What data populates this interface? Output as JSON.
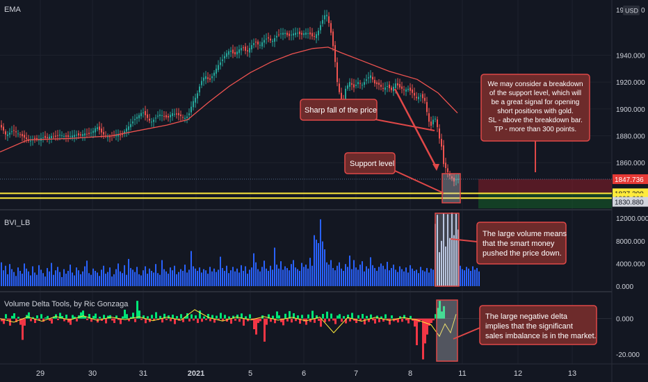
{
  "chart_data": {
    "type": "candlestick",
    "instrument_currency": "USD",
    "price_axis_top_label": "19",
    "price_axis_top_suffix": "0",
    "x_axis": {
      "ticks": [
        "29",
        "30",
        "31",
        "2021",
        "5",
        "6",
        "7",
        "8",
        "11",
        "12",
        "13"
      ]
    },
    "price_pane": {
      "indicator_label": "EMA",
      "ylim": [
        1826,
        1978
      ],
      "y_ticks": [
        "1940.000",
        "1920.000",
        "1900.000",
        "1880.000",
        "1860.000"
      ],
      "y_tick_values": [
        1940,
        1920,
        1900,
        1880,
        1860
      ],
      "price_tags": [
        {
          "text": "1847.736",
          "value": 1847.736,
          "bg": "#e53935",
          "fg": "#ffffff"
        },
        {
          "text": "1837.200",
          "value": 1837.2,
          "bg": "#ffeb3b",
          "fg": "#131722"
        },
        {
          "text": "1833.600",
          "value": 1833.6,
          "bg": "#ffeb3b",
          "fg": "#131722"
        },
        {
          "text": "1830.880",
          "value": 1830.88,
          "bg": "#d1d4dc",
          "fg": "#131722"
        }
      ],
      "support_lines": [
        1837.2,
        1833.6
      ],
      "current_price": 1847.736,
      "target_zone": [
        1830.88,
        1837.2
      ],
      "risk_zone": [
        1837.2,
        1847.736
      ],
      "close_path": [
        [
          0,
          1887
        ],
        [
          4,
          1884
        ],
        [
          8,
          1880
        ],
        [
          12,
          1882
        ],
        [
          18,
          1884
        ],
        [
          24,
          1882
        ],
        [
          30,
          1880
        ],
        [
          36,
          1878
        ],
        [
          42,
          1876
        ],
        [
          48,
          1878
        ],
        [
          54,
          1877
        ],
        [
          60,
          1879
        ],
        [
          66,
          1878
        ],
        [
          72,
          1880
        ],
        [
          78,
          1879
        ],
        [
          84,
          1881
        ],
        [
          90,
          1880
        ],
        [
          96,
          1879
        ],
        [
          102,
          1880
        ],
        [
          108,
          1881
        ],
        [
          114,
          1880
        ],
        [
          120,
          1882
        ],
        [
          126,
          1881
        ],
        [
          132,
          1883
        ],
        [
          138,
          1887
        ],
        [
          144,
          1883
        ],
        [
          150,
          1880
        ],
        [
          156,
          1879
        ],
        [
          162,
          1880
        ],
        [
          168,
          1881
        ],
        [
          174,
          1880
        ],
        [
          180,
          1885
        ],
        [
          186,
          1888
        ],
        [
          192,
          1892
        ],
        [
          198,
          1895
        ],
        [
          204,
          1898
        ],
        [
          210,
          1894
        ],
        [
          216,
          1890
        ],
        [
          222,
          1893
        ],
        [
          228,
          1896
        ],
        [
          234,
          1895
        ],
        [
          240,
          1893
        ],
        [
          246,
          1897
        ],
        [
          252,
          1896
        ],
        [
          258,
          1895
        ],
        [
          264,
          1893
        ],
        [
          270,
          1895
        ],
        [
          276,
          1905
        ],
        [
          282,
          1910
        ],
        [
          288,
          1920
        ],
        [
          294,
          1925
        ],
        [
          300,
          1921
        ],
        [
          306,
          1926
        ],
        [
          312,
          1932
        ],
        [
          318,
          1936
        ],
        [
          324,
          1941
        ],
        [
          330,
          1944
        ],
        [
          336,
          1940
        ],
        [
          342,
          1944
        ],
        [
          348,
          1946
        ],
        [
          354,
          1942
        ],
        [
          360,
          1947
        ],
        [
          366,
          1950
        ],
        [
          372,
          1947
        ],
        [
          378,
          1951
        ],
        [
          384,
          1953
        ],
        [
          390,
          1950
        ],
        [
          396,
          1954
        ],
        [
          402,
          1956
        ],
        [
          408,
          1957
        ],
        [
          414,
          1954
        ],
        [
          420,
          1956
        ],
        [
          426,
          1957
        ],
        [
          432,
          1955
        ],
        [
          438,
          1957
        ],
        [
          444,
          1956
        ],
        [
          450,
          1953
        ],
        [
          456,
          1957
        ],
        [
          462,
          1965
        ],
        [
          468,
          1972
        ],
        [
          474,
          1960
        ],
        [
          480,
          1940
        ],
        [
          484,
          1920
        ],
        [
          488,
          1910
        ],
        [
          492,
          1903
        ],
        [
          496,
          1915
        ],
        [
          502,
          1920
        ],
        [
          508,
          1916
        ],
        [
          514,
          1920
        ],
        [
          520,
          1918
        ],
        [
          526,
          1922
        ],
        [
          532,
          1925
        ],
        [
          538,
          1919
        ],
        [
          544,
          1918
        ],
        [
          550,
          1915
        ],
        [
          556,
          1917
        ],
        [
          562,
          1914
        ],
        [
          568,
          1919
        ],
        [
          574,
          1916
        ],
        [
          580,
          1914
        ],
        [
          586,
          1915
        ],
        [
          592,
          1912
        ],
        [
          598,
          1908
        ],
        [
          604,
          1910
        ],
        [
          610,
          1906
        ],
        [
          614,
          1895
        ],
        [
          618,
          1886
        ],
        [
          622,
          1892
        ],
        [
          626,
          1893
        ],
        [
          630,
          1880
        ],
        [
          634,
          1872
        ],
        [
          636,
          1860
        ],
        [
          640,
          1856
        ],
        [
          644,
          1852
        ],
        [
          648,
          1849
        ],
        [
          652,
          1846
        ],
        [
          656,
          1848
        ],
        [
          660,
          1847.7
        ]
      ],
      "ema_path": [
        [
          0,
          1868
        ],
        [
          40,
          1877
        ],
        [
          100,
          1878
        ],
        [
          160,
          1880
        ],
        [
          200,
          1884
        ],
        [
          240,
          1888
        ],
        [
          270,
          1892
        ],
        [
          300,
          1905
        ],
        [
          330,
          1917
        ],
        [
          360,
          1927
        ],
        [
          390,
          1935
        ],
        [
          420,
          1941
        ],
        [
          450,
          1945
        ],
        [
          472,
          1946
        ],
        [
          490,
          1942
        ],
        [
          520,
          1936
        ],
        [
          560,
          1928
        ],
        [
          600,
          1922
        ],
        [
          630,
          1912
        ],
        [
          658,
          1897
        ]
      ]
    },
    "volume_pane": {
      "indicator_label": "BVI_LB",
      "ylim": [
        0,
        13000
      ],
      "y_ticks": [
        "12000.000",
        "8000.000",
        "4000.000",
        "0.000"
      ],
      "y_tick_values": [
        12000,
        8000,
        4000,
        0
      ],
      "bar_color": "#2962ff",
      "highlight_color": "#b7c7e6",
      "bar_step": 3,
      "bar_count": 220,
      "highlight_start_index": 208,
      "values": [
        4200,
        2800,
        3600,
        2100,
        3900,
        3000,
        2500,
        1800,
        3300,
        2700,
        2200,
        4000,
        3100,
        2600,
        1900,
        3500,
        2400,
        2000,
        3700,
        2900,
        2300,
        1700,
        3200,
        2600,
        4100,
        2000,
        2800,
        3400,
        2500,
        1600,
        3000,
        2200,
        2700,
        3800,
        2400,
        1900,
        3300,
        2800,
        2100,
        2600,
        3500,
        4500,
        2300,
        2000,
        3100,
        2700,
        2400,
        1800,
        2900,
        3600,
        2200,
        2500,
        3300,
        1700,
        2100,
        3000,
        4000,
        2600,
        2300,
        3700,
        2000,
        4800,
        3200,
        2900,
        2500,
        3400,
        2100,
        1900,
        2800,
        3500,
        2200,
        3100,
        2700,
        2400,
        3900,
        2300,
        2000,
        4600,
        3000,
        2600,
        2200,
        3300,
        2800,
        3600,
        2100,
        2500,
        3000,
        2700,
        3800,
        2400,
        2900,
        6200,
        3500,
        3100,
        2700,
        3300,
        2400,
        3000,
        2800,
        2200,
        3400,
        2600,
        3100,
        2500,
        2900,
        5200,
        3200,
        2700,
        3600,
        2300,
        2800,
        3400,
        2600,
        3100,
        2400,
        3700,
        2700,
        3500,
        2200,
        2900,
        3300,
        5800,
        4200,
        3000,
        2600,
        3400,
        4500,
        3100,
        2700,
        3600,
        2900,
        6800,
        3800,
        3100,
        4400,
        2900,
        3500,
        3200,
        2800,
        3900,
        4600,
        3300,
        3000,
        2700,
        4100,
        3400,
        3800,
        3100,
        5000,
        3600,
        9000,
        8200,
        7600,
        11800,
        7900,
        6500,
        4200,
        3800,
        4600,
        3200,
        2800,
        3600,
        4200,
        3100,
        2700,
        3900,
        3400,
        5400,
        3000,
        4600,
        3300,
        2900,
        3800,
        4400,
        2600,
        3500,
        3100,
        5100,
        3700,
        3200,
        2700,
        3400,
        4000,
        3600,
        3000,
        4300,
        2800,
        3200,
        3800,
        2900,
        2500,
        3500,
        3000,
        2600,
        3300,
        2400,
        3700,
        3100,
        2700,
        2900,
        2300,
        3400,
        2800,
        2600,
        3200,
        2400,
        3100,
        2900,
        11000,
        12600,
        6000,
        8000,
        12900,
        7000,
        12700,
        8500,
        13000,
        9000,
        12800,
        10000,
        3600,
        3000,
        2800,
        3400,
        3100,
        2700,
        3500,
        2900,
        3200,
        2600
      ]
    },
    "delta_pane": {
      "indicator_label": "Volume Delta Tools, by Ric Gonzaga",
      "ylim": [
        -24000,
        12000
      ],
      "y_ticks": [
        "0.000",
        "-20.000"
      ],
      "y_tick_values": [
        0,
        -20000
      ],
      "positive_color": "#00e676",
      "negative_color": "#f23645",
      "line_color": "#ffeb3b",
      "sample_step": 3,
      "values": [
        -1500,
        -3000,
        2500,
        -800,
        -4000,
        1500,
        3000,
        -2000,
        1000,
        -3500,
        -12000,
        -4000,
        2000,
        3500,
        -1500,
        800,
        -2500,
        1800,
        -1000,
        2500,
        -1800,
        600,
        1500,
        -1200,
        -2800,
        1200,
        2400,
        -900,
        3200,
        1400,
        -1500,
        2200,
        -2200,
        -3500,
        2000,
        1000,
        -1600,
        1800,
        3500,
        4500,
        1200,
        -900,
        2600,
        -1800,
        1500,
        2800,
        -2200,
        1000,
        -1300,
        2100,
        -2700,
        1600,
        1900,
        -1100,
        -2500,
        1700,
        -800,
        -3100,
        1200,
        5000,
        2500,
        -1500,
        900,
        3300,
        -2000,
        10000,
        4500,
        -800,
        1800,
        -2600,
        1300,
        -1900,
        2100,
        -1200,
        3600,
        -800,
        1500,
        -2200,
        2700,
        -900,
        1800,
        -1500,
        2200,
        -3100,
        1400,
        -1200,
        2500,
        -2000,
        1000,
        3000,
        -1600,
        2400,
        -1100,
        1800,
        -2500,
        4500,
        -1800,
        1200,
        -900,
        2600,
        -1500,
        2000,
        -2300,
        1600,
        -1000,
        3200,
        -1400,
        2100,
        -1700,
        1200,
        -2900,
        1600,
        -1200,
        2200,
        -1800,
        2900,
        -4000,
        1300,
        -1500,
        2400,
        -1000,
        -6000,
        -9000,
        -2500,
        -1500,
        1800,
        -13000,
        -3500,
        2400,
        -1800,
        1600,
        -2600,
        4000,
        1800,
        -2000,
        -3800,
        2700,
        -1600,
        4200,
        -2200,
        3000,
        -1400,
        1800,
        -2900,
        2100,
        -1600,
        -3500,
        2300,
        -1900,
        4400,
        -2400,
        1800,
        -1300,
        -4600,
        2600,
        -2000,
        3900,
        -1500,
        2800,
        -1100,
        -3100,
        1700,
        2500,
        -1800,
        1400,
        -2700,
        2200,
        -1600,
        3200,
        -1200,
        -2500,
        1900,
        -1400,
        2600,
        -3300,
        1500,
        -1900,
        2300,
        -1000,
        -2800,
        1600,
        -2100,
        1200,
        -1700,
        2400,
        -1100,
        -3400,
        1800,
        -1500,
        -1000,
        -2200,
        1300,
        -1800,
        2000,
        -1000,
        -2700,
        1500,
        -1200,
        -4500,
        -15000,
        -2000,
        -1000,
        -23000,
        -14000,
        -9000,
        -4000,
        -2500,
        -1000,
        2500,
        6000,
        10000,
        4000,
        7000
      ],
      "signal_line": [
        [
          0,
          0
        ],
        [
          20,
          -2000
        ],
        [
          40,
          1000
        ],
        [
          60,
          -1500
        ],
        [
          80,
          1200
        ],
        [
          100,
          -800
        ],
        [
          120,
          1500
        ],
        [
          140,
          -1000
        ],
        [
          160,
          800
        ],
        [
          180,
          -600
        ],
        [
          200,
          1000
        ],
        [
          220,
          -1200
        ],
        [
          240,
          800
        ],
        [
          260,
          -900
        ],
        [
          280,
          5000
        ],
        [
          300,
          600
        ],
        [
          320,
          -1400
        ],
        [
          340,
          900
        ],
        [
          360,
          -700
        ],
        [
          380,
          1100
        ],
        [
          400,
          -900
        ],
        [
          420,
          700
        ],
        [
          440,
          -1300
        ],
        [
          460,
          800
        ],
        [
          480,
          -8000
        ],
        [
          500,
          600
        ],
        [
          520,
          -1500
        ],
        [
          540,
          700
        ],
        [
          560,
          -1000
        ],
        [
          580,
          600
        ],
        [
          600,
          -800
        ],
        [
          620,
          -3500
        ],
        [
          632,
          -10000
        ],
        [
          640,
          -3000
        ],
        [
          648,
          -8000
        ],
        [
          656,
          2500
        ]
      ]
    },
    "annotations": [
      {
        "id": "sharp-fall",
        "text": "Sharp fall of the price"
      },
      {
        "id": "support",
        "text": "Support level"
      },
      {
        "id": "breakdown",
        "lines": [
          "We may consider a breakdown",
          "of the support level, which will",
          "be a great signal for opening",
          "short positions with gold.",
          "SL - above the breakdown bar.",
          "TP - more than 300 points."
        ]
      },
      {
        "id": "volume-note",
        "lines": [
          "The large volume means",
          "that the smart money",
          "pushed the price down."
        ]
      },
      {
        "id": "delta-note",
        "lines": [
          "The large negative delta",
          "implies that the significant",
          "sales imbalance is in the market."
        ]
      }
    ],
    "colors": {
      "background": "#131722",
      "up": "#26a69a",
      "down": "#ef5350",
      "ema": "#ef5350",
      "annotation_fill": "#6d2b2b",
      "annotation_border": "#e04848",
      "support_line": "#ffeb3b"
    }
  }
}
